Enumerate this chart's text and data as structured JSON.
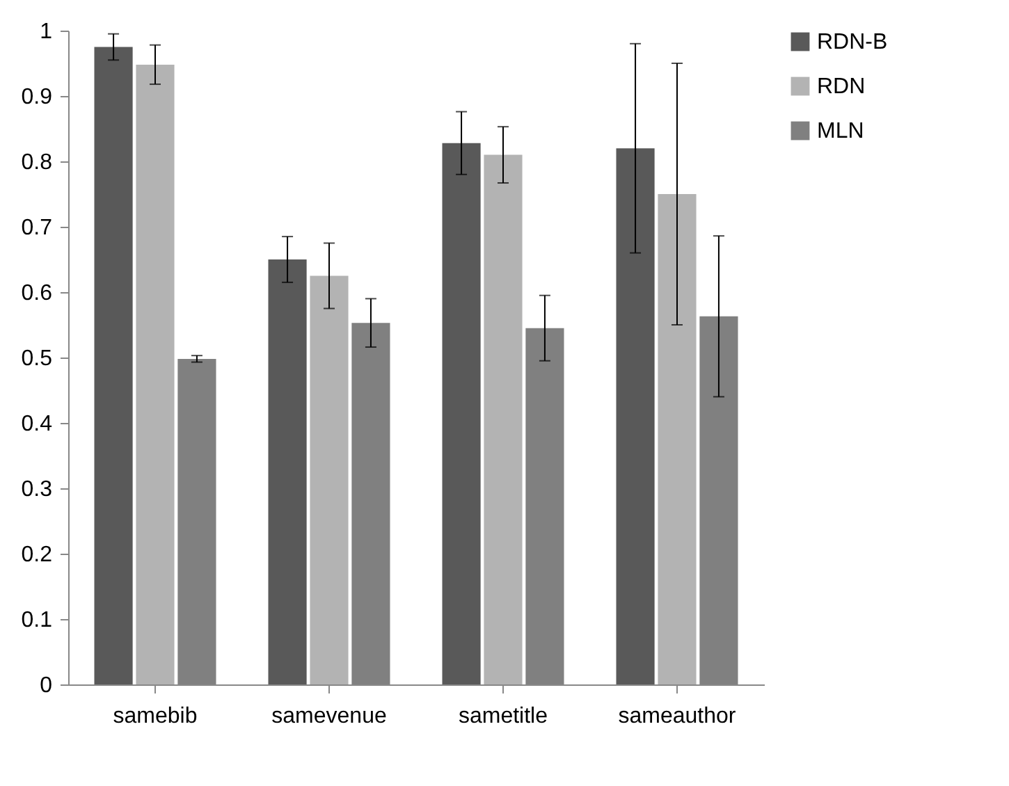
{
  "chart_data": {
    "type": "bar",
    "categories": [
      "samebib",
      "samevenue",
      "sametitle",
      "sameauthor"
    ],
    "series": [
      {
        "name": "RDN-B",
        "color": "#595959",
        "values": [
          0.975,
          0.65,
          0.828,
          0.82
        ],
        "errors": [
          0.02,
          0.035,
          0.048,
          0.16
        ]
      },
      {
        "name": "RDN",
        "color": "#b3b3b3",
        "values": [
          0.948,
          0.625,
          0.81,
          0.75
        ],
        "errors": [
          0.03,
          0.05,
          0.043,
          0.2
        ]
      },
      {
        "name": "MLN",
        "color": "#808080",
        "values": [
          0.498,
          0.553,
          0.545,
          0.563
        ],
        "errors": [
          0.005,
          0.037,
          0.05,
          0.123
        ]
      }
    ],
    "ylim": [
      0,
      1
    ],
    "yticks": [
      0,
      0.1,
      0.2,
      0.3,
      0.4,
      0.5,
      0.6,
      0.7,
      0.8,
      0.9,
      1
    ],
    "grid": false,
    "legend": "right"
  }
}
